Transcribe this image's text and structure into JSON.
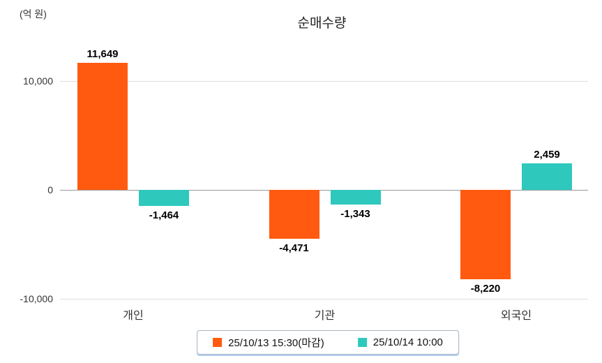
{
  "unit_label": "(억 원)",
  "colors": {
    "series1": "#ff5a0f",
    "series2": "#2ec8bd",
    "gridline": "#dddddd",
    "zero_line": "#999999",
    "text": "#222222"
  },
  "chart_data": {
    "type": "bar",
    "title": "순매수량",
    "ylabel": "(억 원)",
    "categories": [
      "개인",
      "기관",
      "외국인"
    ],
    "series": [
      {
        "name": "25/10/13 15:30(마감)",
        "color": "#ff5a0f",
        "values": [
          11649,
          -4471,
          -8220
        ],
        "labels": [
          "11,649",
          "-4,471",
          "-8,220"
        ]
      },
      {
        "name": "25/10/14 10:00",
        "color": "#2ec8bd",
        "values": [
          -1464,
          -1343,
          2459
        ],
        "labels": [
          "-1,464",
          "-1,343",
          "2,459"
        ]
      }
    ],
    "ylim": [
      -10000,
      10000
    ],
    "yticks": [
      10000,
      0,
      -10000
    ],
    "ytick_labels": [
      "10,000",
      "0",
      "-10,000"
    ],
    "grid": true,
    "legend_position": "bottom"
  }
}
